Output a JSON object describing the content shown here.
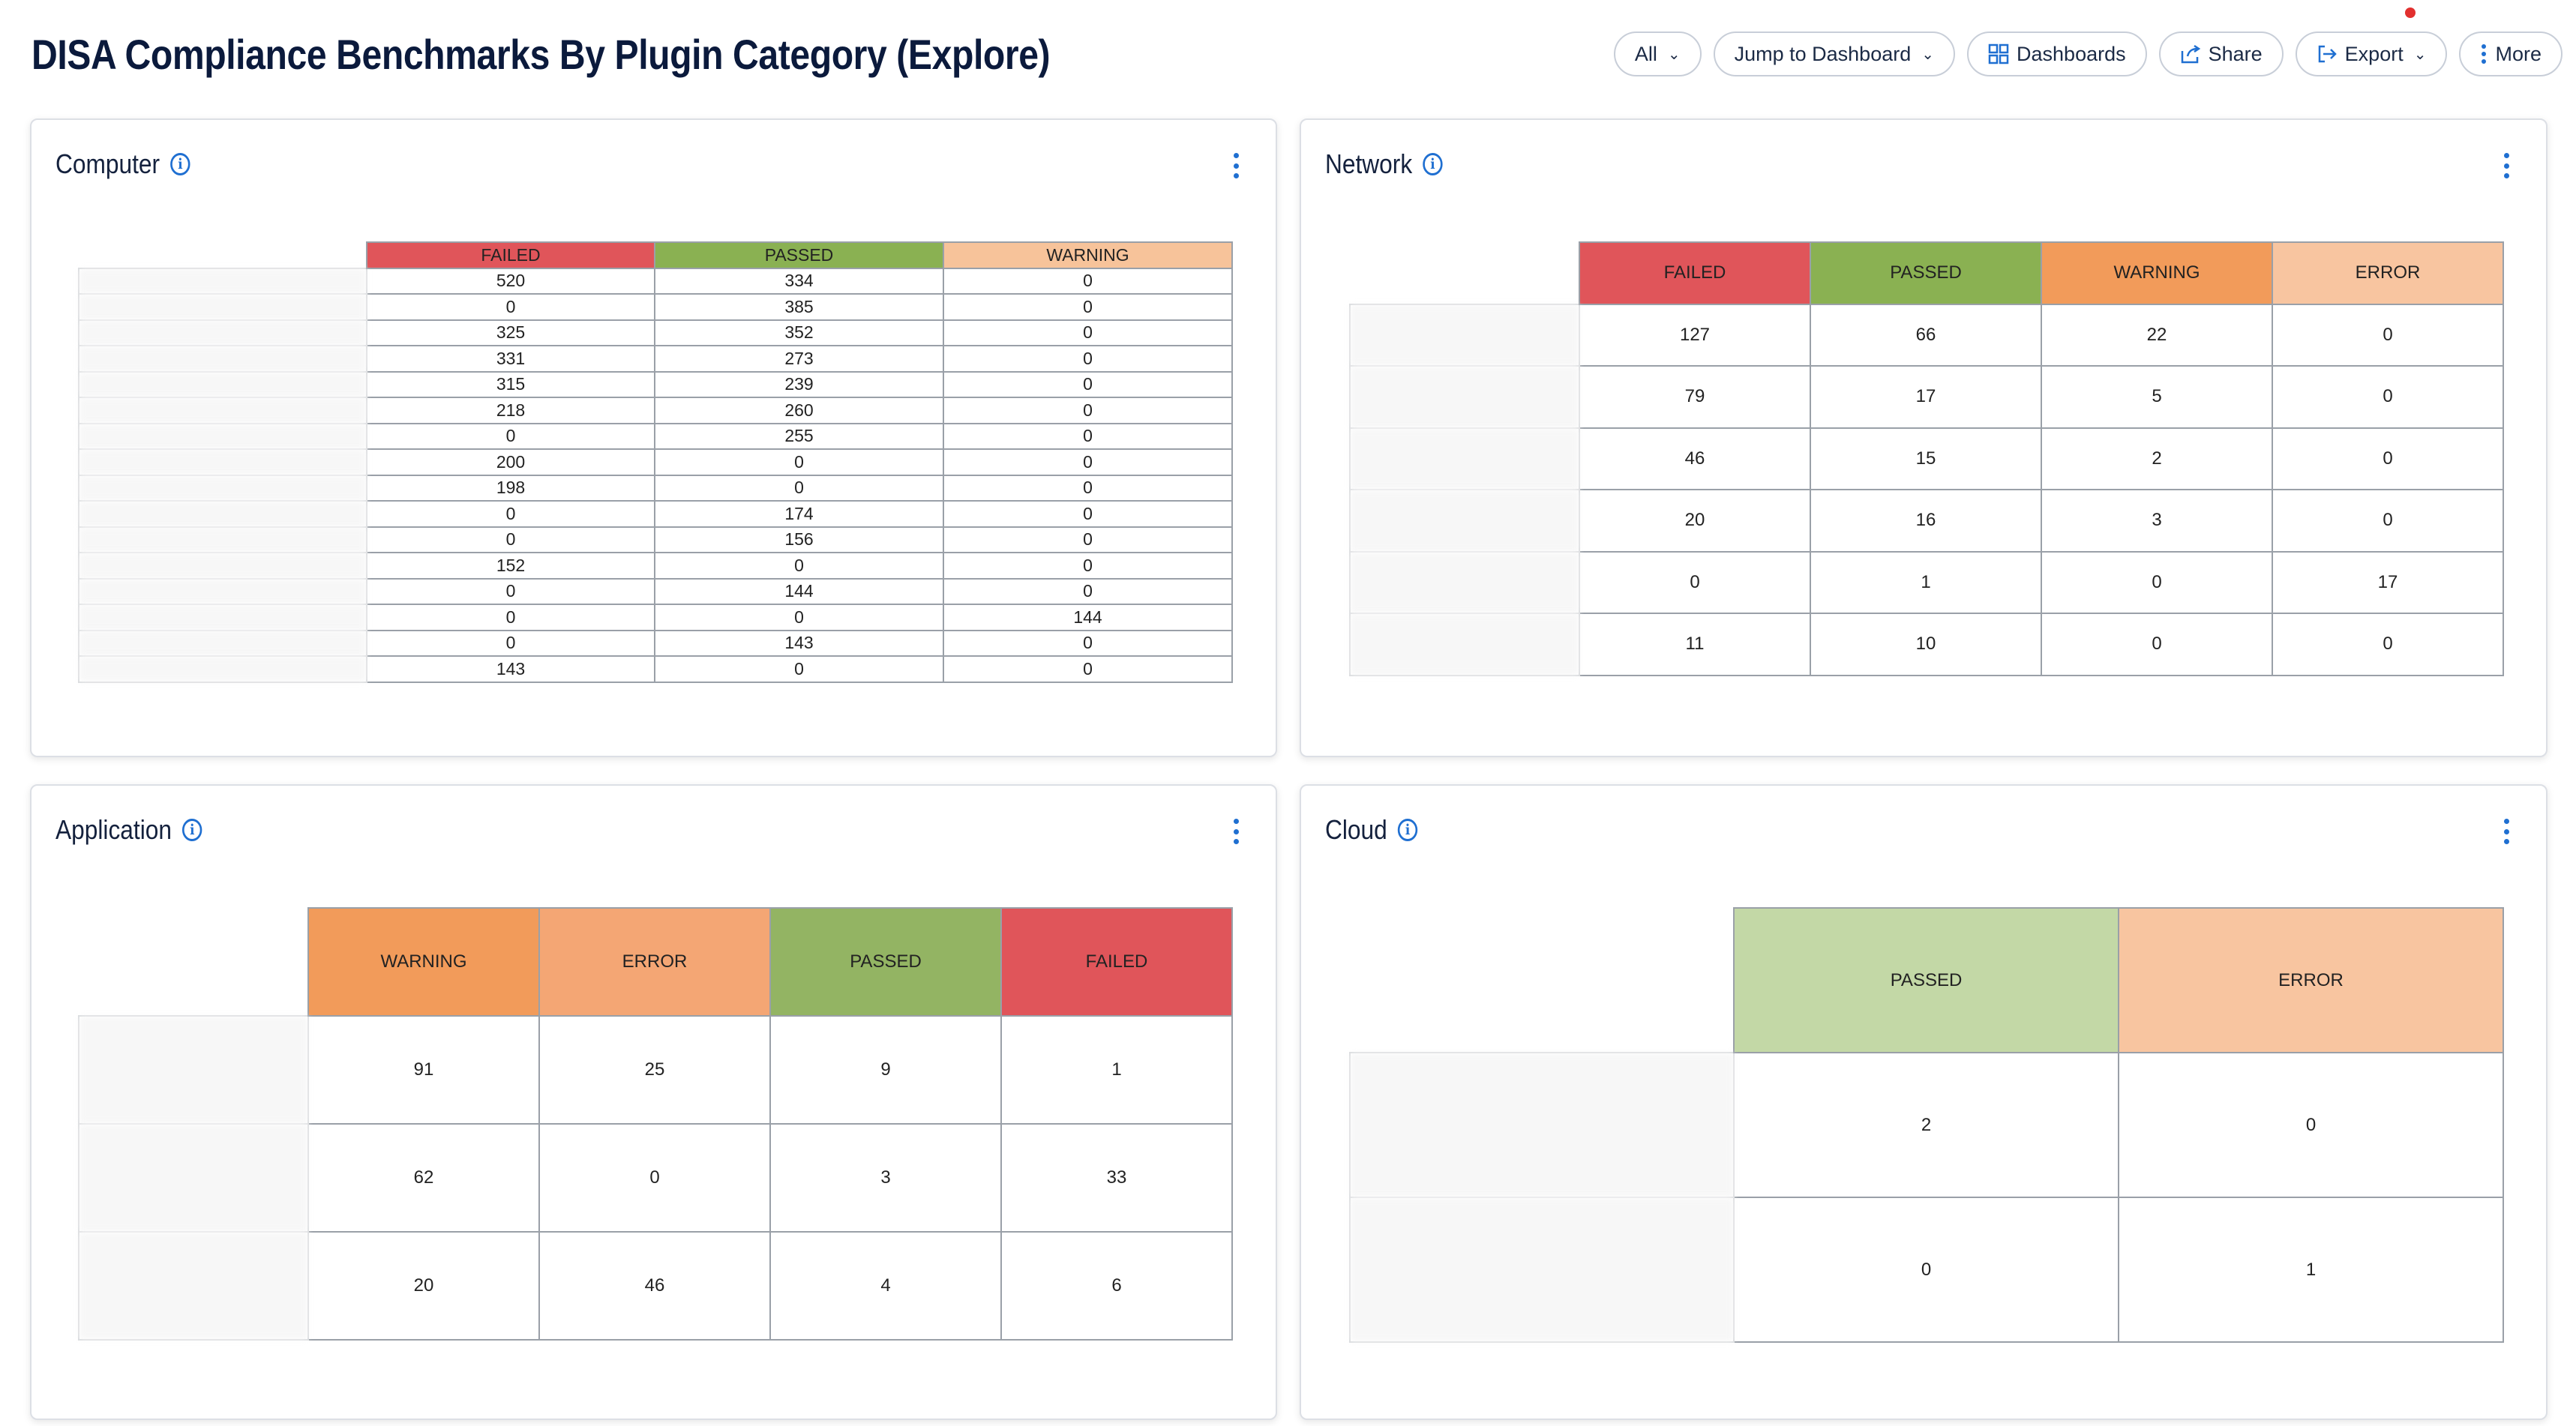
{
  "page": {
    "title": "DISA Compliance Benchmarks By Plugin Category (Explore)"
  },
  "toolbar": {
    "filter_label": "All",
    "jump_label": "Jump to Dashboard",
    "dashboards_label": "Dashboards",
    "share_label": "Share",
    "export_label": "Export",
    "more_label": "More"
  },
  "icons": {
    "filter": "chevron-down-icon",
    "dashboards": "grid-icon",
    "share": "share-icon",
    "export": "export-icon",
    "more": "kebab-icon",
    "info": "info-icon",
    "menu": "kebab-icon"
  },
  "colors": {
    "failed": "#e0555a",
    "passed": "#8ab152",
    "warning": "#f29b5a",
    "error": "#f4a674",
    "accent": "#1f6fd1"
  },
  "panels": {
    "computer": {
      "title": "Computer",
      "columns": [
        "FAILED",
        "PASSED",
        "WARNING"
      ],
      "rows": [
        [
          "520",
          "334",
          "0"
        ],
        [
          "0",
          "385",
          "0"
        ],
        [
          "325",
          "352",
          "0"
        ],
        [
          "331",
          "273",
          "0"
        ],
        [
          "315",
          "239",
          "0"
        ],
        [
          "218",
          "260",
          "0"
        ],
        [
          "0",
          "255",
          "0"
        ],
        [
          "200",
          "0",
          "0"
        ],
        [
          "198",
          "0",
          "0"
        ],
        [
          "0",
          "174",
          "0"
        ],
        [
          "0",
          "156",
          "0"
        ],
        [
          "152",
          "0",
          "0"
        ],
        [
          "0",
          "144",
          "0"
        ],
        [
          "0",
          "0",
          "144"
        ],
        [
          "0",
          "143",
          "0"
        ],
        [
          "143",
          "0",
          "0"
        ]
      ]
    },
    "network": {
      "title": "Network",
      "columns": [
        "FAILED",
        "PASSED",
        "WARNING",
        "ERROR"
      ],
      "rows": [
        [
          "127",
          "66",
          "22",
          "0"
        ],
        [
          "79",
          "17",
          "5",
          "0"
        ],
        [
          "46",
          "15",
          "2",
          "0"
        ],
        [
          "20",
          "16",
          "3",
          "0"
        ],
        [
          "0",
          "1",
          "0",
          "17"
        ],
        [
          "11",
          "10",
          "0",
          "0"
        ]
      ]
    },
    "application": {
      "title": "Application",
      "columns": [
        "WARNING",
        "ERROR",
        "PASSED",
        "FAILED"
      ],
      "rows": [
        [
          "91",
          "25",
          "9",
          "1"
        ],
        [
          "62",
          "0",
          "3",
          "33"
        ],
        [
          "20",
          "46",
          "4",
          "6"
        ]
      ]
    },
    "cloud": {
      "title": "Cloud",
      "columns": [
        "PASSED",
        "ERROR"
      ],
      "rows": [
        [
          "2",
          "0"
        ],
        [
          "0",
          "1"
        ]
      ]
    }
  }
}
